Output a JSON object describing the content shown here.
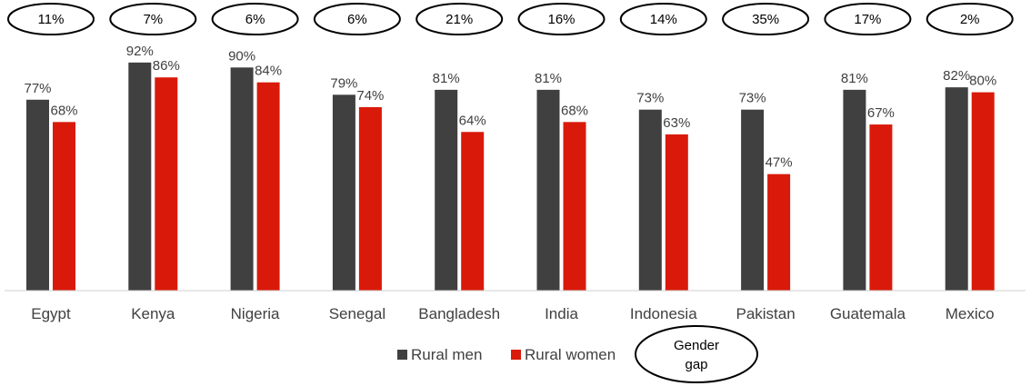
{
  "chart_data": {
    "type": "bar",
    "categories": [
      "Egypt",
      "Kenya",
      "Nigeria",
      "Senegal",
      "Bangladesh",
      "India",
      "Indonesia",
      "Pakistan",
      "Guatemala",
      "Mexico"
    ],
    "series": [
      {
        "name": "Rural men",
        "color": "#404040",
        "values": [
          77,
          92,
          90,
          79,
          81,
          81,
          73,
          73,
          81,
          82
        ],
        "labels": [
          "77%",
          "92%",
          "90%",
          "79%",
          "81%",
          "81%",
          "73%",
          "73%",
          "81%",
          "82%"
        ]
      },
      {
        "name": "Rural women",
        "color": "#d91a0a",
        "values": [
          68,
          86,
          84,
          74,
          64,
          68,
          63,
          47,
          67,
          80
        ],
        "labels": [
          "68%",
          "86%",
          "84%",
          "74%",
          "64%",
          "68%",
          "63%",
          "47%",
          "67%",
          "80%"
        ]
      }
    ],
    "gender_gap": {
      "name": "Gender gap",
      "legend_lines": [
        "Gender",
        "gap"
      ],
      "values": [
        11,
        7,
        6,
        6,
        21,
        16,
        14,
        35,
        17,
        2
      ],
      "labels": [
        "11%",
        "7%",
        "6%",
        "6%",
        "21%",
        "16%",
        "14%",
        "35%",
        "17%",
        "2%"
      ]
    },
    "ylim": [
      0,
      100
    ],
    "grid": false,
    "legend_position": "bottom"
  }
}
